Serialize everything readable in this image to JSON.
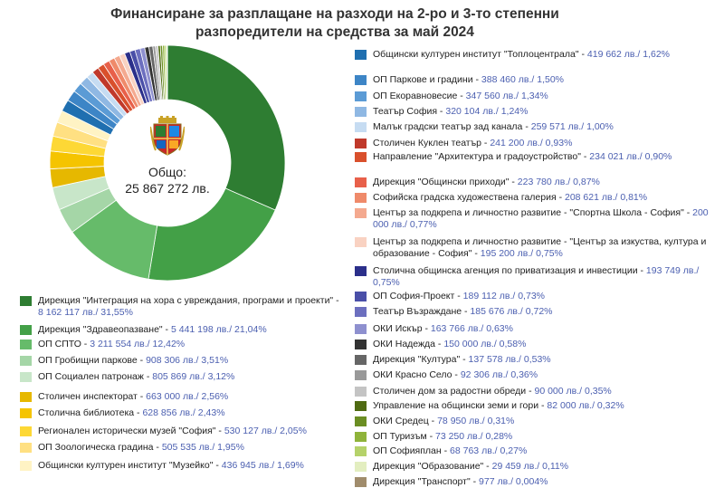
{
  "title": {
    "line1": "Финансиране за разплащане на разходи на 2-ро и 3-то степенни",
    "line2": "разпоредители на средства за май 2024"
  },
  "total": {
    "label": "Общо:",
    "value": "25 867 272 лв."
  },
  "chart_data": {
    "type": "pie",
    "donut": true,
    "title": "Финансиране за разплащане на разходи на 2-ро и 3-то степенни разпоредители на средства за май 2024",
    "center_text": "Общо: 25 867 272 лв.",
    "slices": [
      {
        "label": "Дирекция \"Интеграция на хора с увреждания, програми и проекти\"",
        "value_text": "8 162 117 лв./ 31,55%",
        "value": 8162117,
        "percent": 31.55,
        "color": "#2e7d32"
      },
      {
        "label": "Дирекция \"Здравеопазване\"",
        "value_text": "5 441 198 лв./ 21,04%",
        "value": 5441198,
        "percent": 21.04,
        "color": "#43a047"
      },
      {
        "label": "ОП СПТО",
        "value_text": "3 211 554 лв./ 12,42%",
        "value": 3211554,
        "percent": 12.42,
        "color": "#66bb6a"
      },
      {
        "label": "ОП Гробищни паркове",
        "value_text": "908 306 лв./ 3,51%",
        "value": 908306,
        "percent": 3.51,
        "color": "#a5d6a7"
      },
      {
        "label": "ОП Социален патронаж",
        "value_text": "805 869 лв./ 3,12%",
        "value": 805869,
        "percent": 3.12,
        "color": "#c8e6c9"
      },
      {
        "label": "Столичен инспекторат",
        "value_text": "663 000 лв./ 2,56%",
        "value": 663000,
        "percent": 2.56,
        "color": "#e6b800"
      },
      {
        "label": "Столична библиотека",
        "value_text": "628 856 лв./ 2,43%",
        "value": 628856,
        "percent": 2.43,
        "color": "#f5c400"
      },
      {
        "label": "Регионален исторически музей \"София\"",
        "value_text": "530 127 лв./ 2,05%",
        "value": 530127,
        "percent": 2.05,
        "color": "#fdd835"
      },
      {
        "label": "ОП Зоологическа градина",
        "value_text": "505 535 лв./ 1,95%",
        "value": 505535,
        "percent": 1.95,
        "color": "#ffe082"
      },
      {
        "label": "Общински културен институт \"Музейко\"",
        "value_text": "436 945 лв./ 1,69%",
        "value": 436945,
        "percent": 1.69,
        "color": "#fff3c4"
      },
      {
        "label": "Общински културен институт \"Топлоцентрала\"",
        "value_text": "419 662 лв./ 1,62%",
        "value": 419662,
        "percent": 1.62,
        "color": "#1f6fb0"
      },
      {
        "label": "ОП Паркове и градини",
        "value_text": "388 460 лв./ 1,50%",
        "value": 388460,
        "percent": 1.5,
        "color": "#3d85c6"
      },
      {
        "label": "ОП Екоравновесие",
        "value_text": "347 560 лв./ 1,34%",
        "value": 347560,
        "percent": 1.34,
        "color": "#5b9bd5"
      },
      {
        "label": "Театър София",
        "value_text": "320 104 лв./ 1,24%",
        "value": 320104,
        "percent": 1.24,
        "color": "#8fb8e3"
      },
      {
        "label": "Малък градски театър зад канала",
        "value_text": "259 571 лв./ 1,00%",
        "value": 259571,
        "percent": 1.0,
        "color": "#c6dcf2"
      },
      {
        "label": "Столичен Куклен театър",
        "value_text": "241 200 лв./ 0,93%",
        "value": 241200,
        "percent": 0.93,
        "color": "#c0392b"
      },
      {
        "label": "Направление \"Архитектура и градоустройство\"",
        "value_text": "234 021 лв./ 0,90%",
        "value": 234021,
        "percent": 0.9,
        "color": "#d9502c"
      },
      {
        "label": "Дирекция \"Общински приходи\"",
        "value_text": "223 780 лв./ 0,87%",
        "value": 223780,
        "percent": 0.87,
        "color": "#e8604a"
      },
      {
        "label": "Софийска градска художествена галерия",
        "value_text": "208 621 лв./ 0,81%",
        "value": 208621,
        "percent": 0.81,
        "color": "#ef8a6a"
      },
      {
        "label": "Център за подкрепа и личностно развитие - \"Спортна Школа - София\"",
        "value_text": "200 000 лв./ 0,77%",
        "value": 200000,
        "percent": 0.77,
        "color": "#f4a98f"
      },
      {
        "label": "Център за подкрепа и личностно развитие - \"Център за изкуства, култура и образование - София\"",
        "value_text": "195 200 лв./ 0,75%",
        "value": 195200,
        "percent": 0.75,
        "color": "#f9d2c2"
      },
      {
        "label": "Столична общинска агенция по приватизация и инвестиции",
        "value_text": "193 749 лв./ 0,75%",
        "value": 193749,
        "percent": 0.75,
        "color": "#2b2f8a"
      },
      {
        "label": "ОП София-Проект",
        "value_text": "189 112 лв./ 0,73%",
        "value": 189112,
        "percent": 0.73,
        "color": "#4a4fa8"
      },
      {
        "label": "Театър Възраждане",
        "value_text": "185 676 лв./ 0,72%",
        "value": 185676,
        "percent": 0.72,
        "color": "#6c6fbf"
      },
      {
        "label": "ОКИ Искър",
        "value_text": "163 766 лв./ 0,63%",
        "value": 163766,
        "percent": 0.63,
        "color": "#8e90cf"
      },
      {
        "label": "ОКИ Надежда",
        "value_text": "150 000 лв./ 0,58%",
        "value": 150000,
        "percent": 0.58,
        "color": "#333333"
      },
      {
        "label": "Дирекция \"Култура\"",
        "value_text": "137 578 лв./ 0,53%",
        "value": 137578,
        "percent": 0.53,
        "color": "#666666"
      },
      {
        "label": "ОКИ Красно Село",
        "value_text": "92 306 лв./ 0,36%",
        "value": 92306,
        "percent": 0.36,
        "color": "#999999"
      },
      {
        "label": "Столичен дом за радостни обреди",
        "value_text": "90 000 лв./ 0,35%",
        "value": 90000,
        "percent": 0.35,
        "color": "#c4c4c4"
      },
      {
        "label": "Управление на общински земи и гори",
        "value_text": "82 000 лв./ 0,32%",
        "value": 82000,
        "percent": 0.32,
        "color": "#4f6a12"
      },
      {
        "label": "ОКИ Средец",
        "value_text": "78 950 лв./ 0,31%",
        "value": 78950,
        "percent": 0.31,
        "color": "#6b8e23"
      },
      {
        "label": "ОП Туризъм",
        "value_text": "73 250 лв./ 0,28%",
        "value": 73250,
        "percent": 0.28,
        "color": "#8fb33a"
      },
      {
        "label": "ОП Софияплан",
        "value_text": "68 763 лв./ 0,27%",
        "value": 68763,
        "percent": 0.27,
        "color": "#b5d26a"
      },
      {
        "label": "Дирекция \"Образование\"",
        "value_text": "29 459 лв./ 0,11%",
        "value": 29459,
        "percent": 0.11,
        "color": "#e3eec0"
      },
      {
        "label": "Дирекция \"Транспорт\"",
        "value_text": "977 лв./ 0,004%",
        "value": 977,
        "percent": 0.004,
        "color": "#a08c6c"
      }
    ]
  }
}
